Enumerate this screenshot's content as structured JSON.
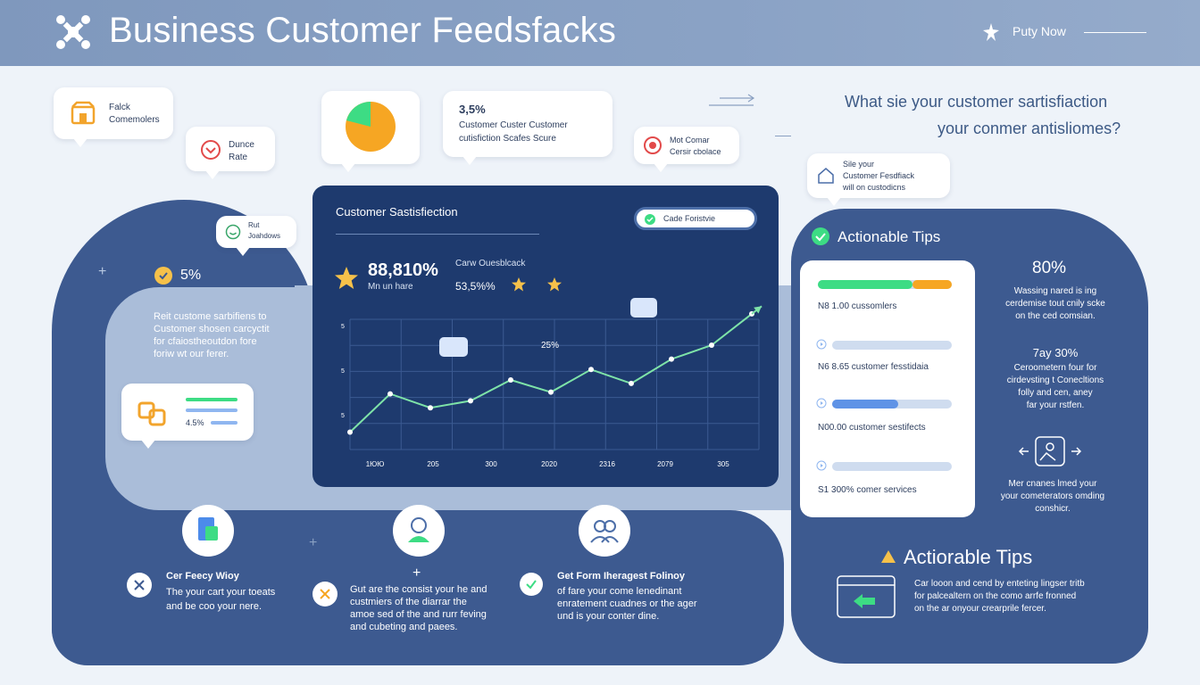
{
  "header": {
    "title": "Business Customer Feedsfacks",
    "cta_label": "Puty Now"
  },
  "bubbles": {
    "b1": {
      "line1": "Falck",
      "line2": "Comemolers"
    },
    "b2": {
      "line1": "Dunce",
      "line2": "Rate"
    },
    "b3": {
      "line1": "Rut",
      "line2": "Joahdows"
    },
    "b4": {
      "pct": "3,5%",
      "line1": "Customer Custer Customer",
      "line2": "cutisfiction Scafes Scure"
    },
    "b5": {
      "line1": "Mot Comar",
      "line2": "Cersir cbolace"
    },
    "b6": {
      "line1": "Sile your",
      "line2": "Customer Fesdfiack",
      "line3": "will on custodicns"
    }
  },
  "question": {
    "line1": "What sie your customer sartisfiaction",
    "line2": "your conmer antisliomes?"
  },
  "left_panel": {
    "pct": "5%",
    "desc1": "Reit custome sarbifiens to",
    "desc2": "Customer shosen carcyctit",
    "desc3": "for cfaiostheoutdon fore",
    "desc4": "foriw wt our ferer.",
    "card_value": "4.5%"
  },
  "chart_panel": {
    "title": "Customer Sastisfiection",
    "pill_label": "Cade Foristvie",
    "big_value": "88,810%",
    "big_sub": "Mn un hare",
    "label2": "Carw Ouesblcack",
    "value2": "53,5%%",
    "annot": "25%"
  },
  "chart_data": {
    "type": "line",
    "x_labels": [
      "1ЮЮ",
      "205",
      "300",
      "2020",
      "2316",
      "2079",
      "305"
    ],
    "y_ticks": [
      "5",
      "5",
      "5"
    ],
    "values": [
      10,
      32,
      24,
      28,
      40,
      33,
      46,
      38,
      52,
      60,
      78
    ]
  },
  "tips": {
    "heading": "Actionable Tips",
    "rows": [
      {
        "label": "N8 1.00 cussomlers",
        "fill": 1.0
      },
      {
        "label": "N6 8.65 customer fesstidaia",
        "fill": 0.0
      },
      {
        "label": "N00.00 customer sestifects",
        "fill": 0.5
      },
      {
        "label": "S1 300% comer services",
        "fill": 0.0
      }
    ],
    "stat1_value": "80%",
    "stat1_l1": "Wassing nared is ing",
    "stat1_l2": "cerdemise tout cnily scke",
    "stat1_l3": "on the ced comsian.",
    "stat2_value": "7ay 30%",
    "stat2_l1": "Ceroometern four for",
    "stat2_l2": "cirdevsting t Conecltions",
    "stat2_l3": "folly and cen, aney",
    "stat2_l4": "far your rstfen.",
    "stat3_l1": "Mer cnanes lmed your",
    "stat3_l2": "your cometerators omding",
    "stat3_l3": "conshicr."
  },
  "bottom": {
    "item1_title": "Cer Feecy Wioy",
    "item1_l1": "The your cart your toeats",
    "item1_l2": "and be coo your nere.",
    "item2_l1": "Gut are the consist your he and",
    "item2_l2": "custmiers of the diarrar the",
    "item2_l3": "amoe sed of the and rurr feving",
    "item2_l4": "and cubeting and paees.",
    "item3_title": "Get Form Iheragest Folinoy",
    "item3_l1": "of fare your come lenedinant",
    "item3_l2": "enratement cuadnes or the ager",
    "item3_l3": "und is your conter dine.",
    "item4_title": "Actiorable Tips",
    "item4_l1": "Car looon and cend by enteting lingser tritb",
    "item4_l2": "for palcealtern on the como arrfe fronned",
    "item4_l3": "on the ar onyour crearprile fercer."
  },
  "colors": {
    "header_bg": "#8aa2c5",
    "dark_blue": "#3d5a90",
    "panel_blue": "#1e3a6e",
    "accent_green": "#3ddc84",
    "accent_orange": "#f6a623",
    "bar_blue": "#8fb6f0"
  }
}
